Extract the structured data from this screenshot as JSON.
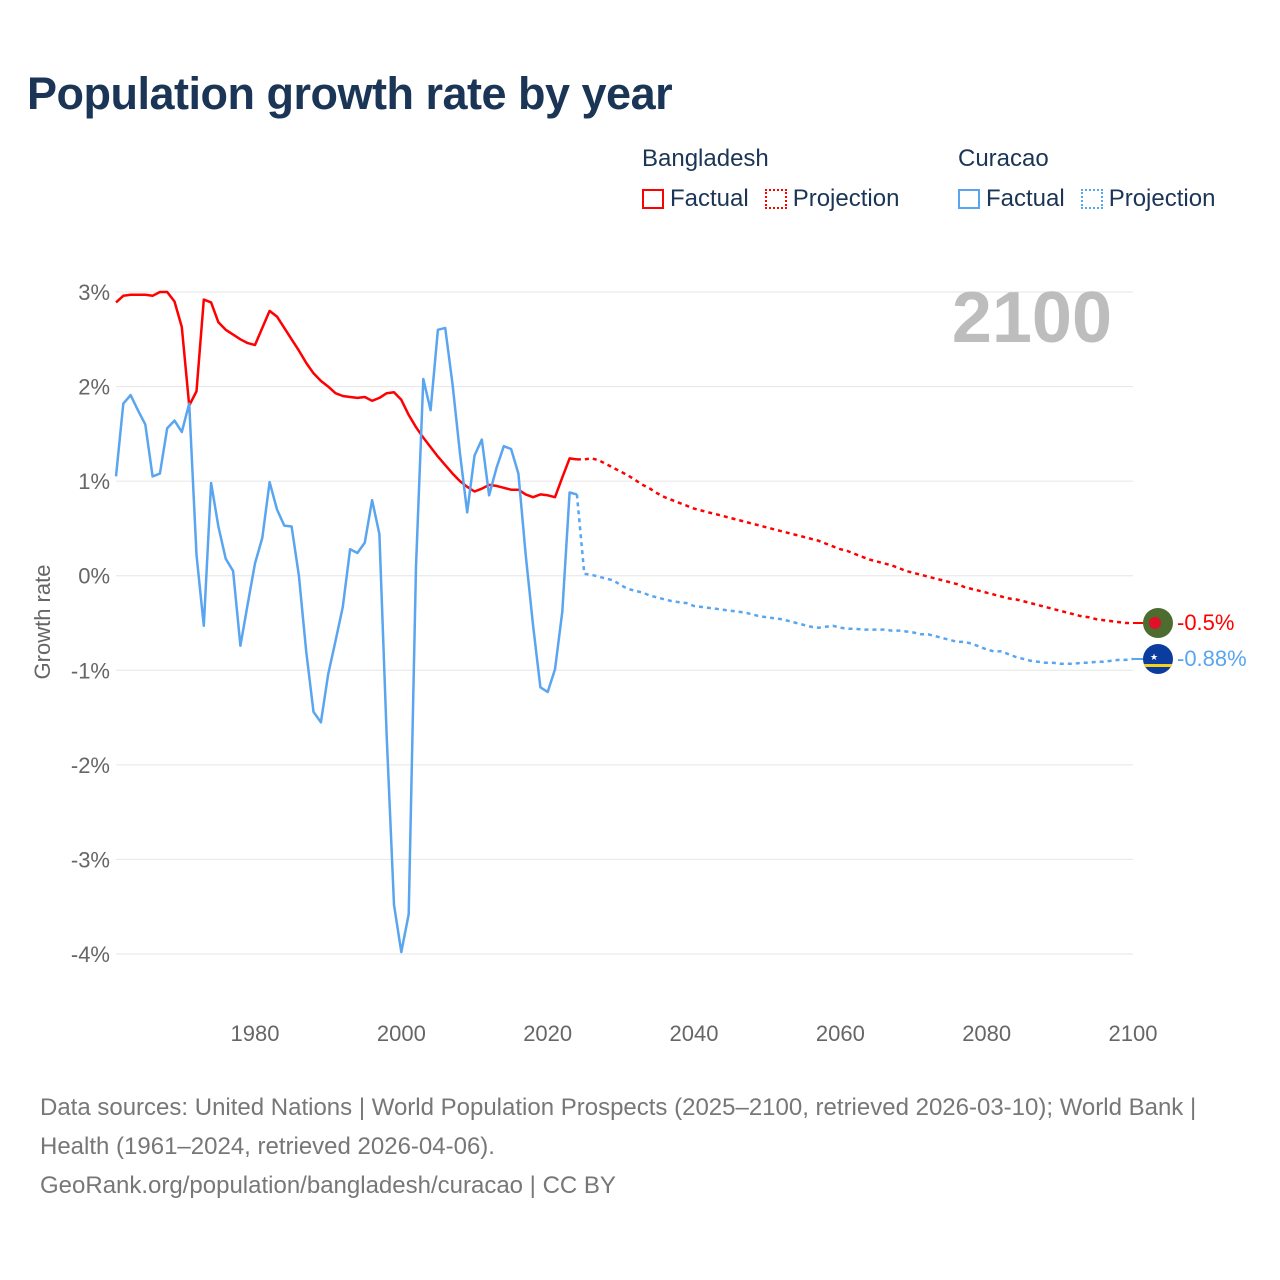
{
  "title": "Population growth rate by year",
  "legend": {
    "groups": [
      {
        "name": "Bangladesh",
        "color": "#ff0000",
        "items": [
          "Factual",
          "Projection"
        ]
      },
      {
        "name": "Curacao",
        "color": "#5aa5f0",
        "items": [
          "Factual",
          "Projection"
        ]
      }
    ]
  },
  "year_label": "2100",
  "end_labels": {
    "bangladesh": "-0.5%",
    "curacao": "-0.88%"
  },
  "footer": {
    "sources": "Data sources: United Nations | World Population Prospects (2025–2100, retrieved 2026-03-10); World Bank | Health (1961–2024, retrieved 2026-04-06).",
    "link": "GeoRank.org/population/bangladesh/curacao | CC BY"
  },
  "chart_data": {
    "type": "line",
    "title": "Population growth rate by year",
    "xlabel": "",
    "ylabel": "Growth rate",
    "xlim": [
      1961,
      2100
    ],
    "ylim": [
      -4,
      3
    ],
    "xticks": [
      1980,
      2000,
      2020,
      2040,
      2060,
      2080,
      2100
    ],
    "yticks": [
      3,
      2,
      1,
      0,
      -1,
      -2,
      -3,
      -4
    ],
    "ytick_labels": [
      "3%",
      "2%",
      "1%",
      "0%",
      "-1%",
      "-2%",
      "-3%",
      "-4%"
    ],
    "grid": true,
    "legend_position": "top-right",
    "series": [
      {
        "name": "Bangladesh Factual",
        "color": "#ff0000",
        "style": "solid",
        "start_year": 1961,
        "values": [
          2.89,
          2.96,
          2.97,
          2.97,
          2.97,
          2.96,
          3.0,
          3.0,
          2.9,
          2.63,
          1.8,
          1.95,
          2.92,
          2.89,
          2.68,
          2.6,
          2.55,
          2.5,
          2.46,
          2.44,
          2.62,
          2.8,
          2.74,
          2.62,
          2.5,
          2.38,
          2.25,
          2.14,
          2.06,
          2.0,
          1.93,
          1.9,
          1.89,
          1.88,
          1.89,
          1.85,
          1.88,
          1.93,
          1.94,
          1.86,
          1.7,
          1.57,
          1.46,
          1.36,
          1.26,
          1.17,
          1.08,
          1.0,
          0.94,
          0.89,
          0.92,
          0.96,
          0.95,
          0.93,
          0.91,
          0.91,
          0.86,
          0.83,
          0.86,
          0.85,
          0.83,
          1.04,
          1.24,
          1.23
        ]
      },
      {
        "name": "Bangladesh Projection",
        "color": "#ff0000",
        "style": "dotted",
        "start_year": 2024,
        "values": [
          1.23,
          1.23,
          1.24,
          1.22,
          1.18,
          1.14,
          1.1,
          1.06,
          1.01,
          0.96,
          0.92,
          0.87,
          0.83,
          0.8,
          0.77,
          0.74,
          0.71,
          0.69,
          0.67,
          0.65,
          0.63,
          0.61,
          0.59,
          0.57,
          0.55,
          0.53,
          0.51,
          0.49,
          0.47,
          0.45,
          0.43,
          0.41,
          0.39,
          0.37,
          0.34,
          0.31,
          0.28,
          0.26,
          0.23,
          0.2,
          0.17,
          0.15,
          0.13,
          0.11,
          0.08,
          0.05,
          0.03,
          0.01,
          -0.01,
          -0.03,
          -0.05,
          -0.07,
          -0.09,
          -0.12,
          -0.14,
          -0.16,
          -0.18,
          -0.2,
          -0.22,
          -0.24,
          -0.25,
          -0.27,
          -0.29,
          -0.31,
          -0.33,
          -0.35,
          -0.37,
          -0.39,
          -0.41,
          -0.43,
          -0.44,
          -0.46,
          -0.47,
          -0.48,
          -0.49,
          -0.5,
          -0.5
        ]
      },
      {
        "name": "Curacao Factual",
        "color": "#5aa5f0",
        "style": "solid",
        "start_year": 1961,
        "values": [
          1.05,
          1.82,
          1.91,
          1.75,
          1.6,
          1.05,
          1.08,
          1.56,
          1.64,
          1.52,
          1.82,
          0.22,
          -0.53,
          0.98,
          0.52,
          0.18,
          0.05,
          -0.74,
          -0.3,
          0.13,
          0.4,
          0.99,
          0.7,
          0.53,
          0.52,
          0.0,
          -0.8,
          -1.44,
          -1.55,
          -1.04,
          -0.69,
          -0.33,
          0.28,
          0.24,
          0.35,
          0.8,
          0.44,
          -1.7,
          -3.48,
          -3.98,
          -3.58,
          0.1,
          2.08,
          1.75,
          2.6,
          2.62,
          2.02,
          1.3,
          0.67,
          1.27,
          1.44,
          0.85,
          1.14,
          1.37,
          1.34,
          1.08,
          0.22,
          -0.52,
          -1.18,
          -1.23,
          -0.99,
          -0.38,
          0.88,
          0.86
        ]
      },
      {
        "name": "Curacao Projection",
        "color": "#5aa5f0",
        "style": "dotted",
        "start_year": 2024,
        "values": [
          0.86,
          0.02,
          0.01,
          -0.01,
          -0.03,
          -0.05,
          -0.1,
          -0.14,
          -0.16,
          -0.18,
          -0.21,
          -0.23,
          -0.25,
          -0.27,
          -0.28,
          -0.29,
          -0.32,
          -0.33,
          -0.34,
          -0.35,
          -0.36,
          -0.37,
          -0.38,
          -0.39,
          -0.41,
          -0.43,
          -0.44,
          -0.45,
          -0.46,
          -0.48,
          -0.5,
          -0.52,
          -0.54,
          -0.55,
          -0.54,
          -0.53,
          -0.55,
          -0.56,
          -0.56,
          -0.57,
          -0.57,
          -0.57,
          -0.57,
          -0.58,
          -0.58,
          -0.59,
          -0.6,
          -0.62,
          -0.62,
          -0.64,
          -0.66,
          -0.68,
          -0.7,
          -0.7,
          -0.72,
          -0.75,
          -0.78,
          -0.8,
          -0.8,
          -0.83,
          -0.86,
          -0.88,
          -0.9,
          -0.91,
          -0.92,
          -0.92,
          -0.93,
          -0.93,
          -0.93,
          -0.92,
          -0.92,
          -0.91,
          -0.91,
          -0.9,
          -0.89,
          -0.89,
          -0.88
        ]
      }
    ]
  }
}
